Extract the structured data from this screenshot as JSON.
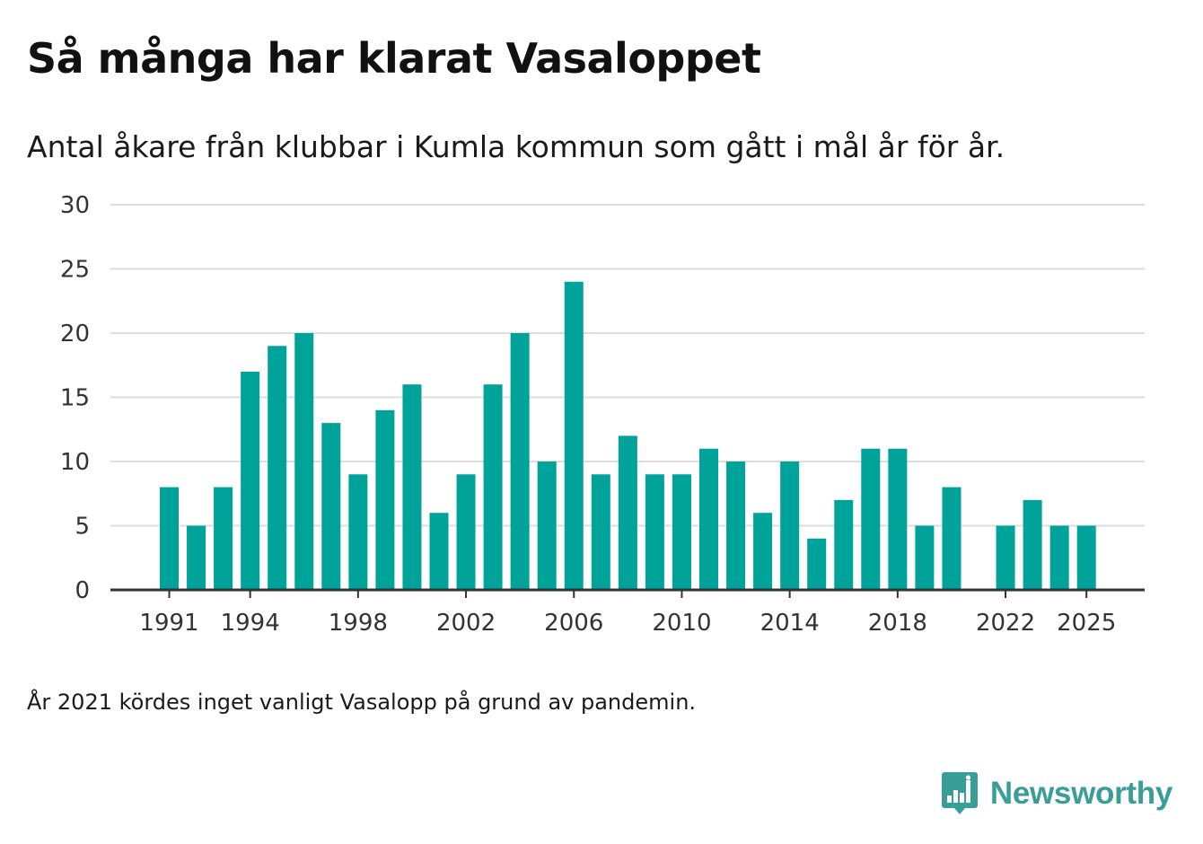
{
  "chart_data": {
    "type": "bar",
    "title": "Så många har klarat Vasaloppet",
    "subtitle": "Antal åkare från klubbar i Kumla kommun som gått i mål år för år.",
    "xlabel": "",
    "ylabel": "",
    "ylim": [
      0,
      30
    ],
    "yticks": [
      0,
      5,
      10,
      15,
      20,
      25,
      30
    ],
    "xticks": [
      1991,
      1994,
      1998,
      2002,
      2006,
      2010,
      2014,
      2018,
      2022,
      2025
    ],
    "categories": [
      1991,
      1992,
      1993,
      1994,
      1995,
      1996,
      1997,
      1998,
      1999,
      2000,
      2001,
      2002,
      2003,
      2004,
      2005,
      2006,
      2007,
      2008,
      2009,
      2010,
      2011,
      2012,
      2013,
      2014,
      2015,
      2016,
      2017,
      2018,
      2019,
      2020,
      2021,
      2022,
      2023,
      2024,
      2025
    ],
    "values": [
      8,
      5,
      8,
      17,
      19,
      20,
      13,
      9,
      14,
      16,
      6,
      9,
      16,
      20,
      10,
      24,
      9,
      12,
      9,
      9,
      11,
      10,
      6,
      10,
      4,
      7,
      11,
      11,
      5,
      8,
      null,
      5,
      7,
      5,
      5
    ],
    "bar_color": "#00a39a",
    "grid": true
  },
  "footnote": "År 2021 kördes inget vanligt Vasalopp på grund av pandemin.",
  "brand": {
    "name": "Newsworthy",
    "color": "#3a9e98",
    "icon": "bar-chart-speech-bubble-icon"
  }
}
